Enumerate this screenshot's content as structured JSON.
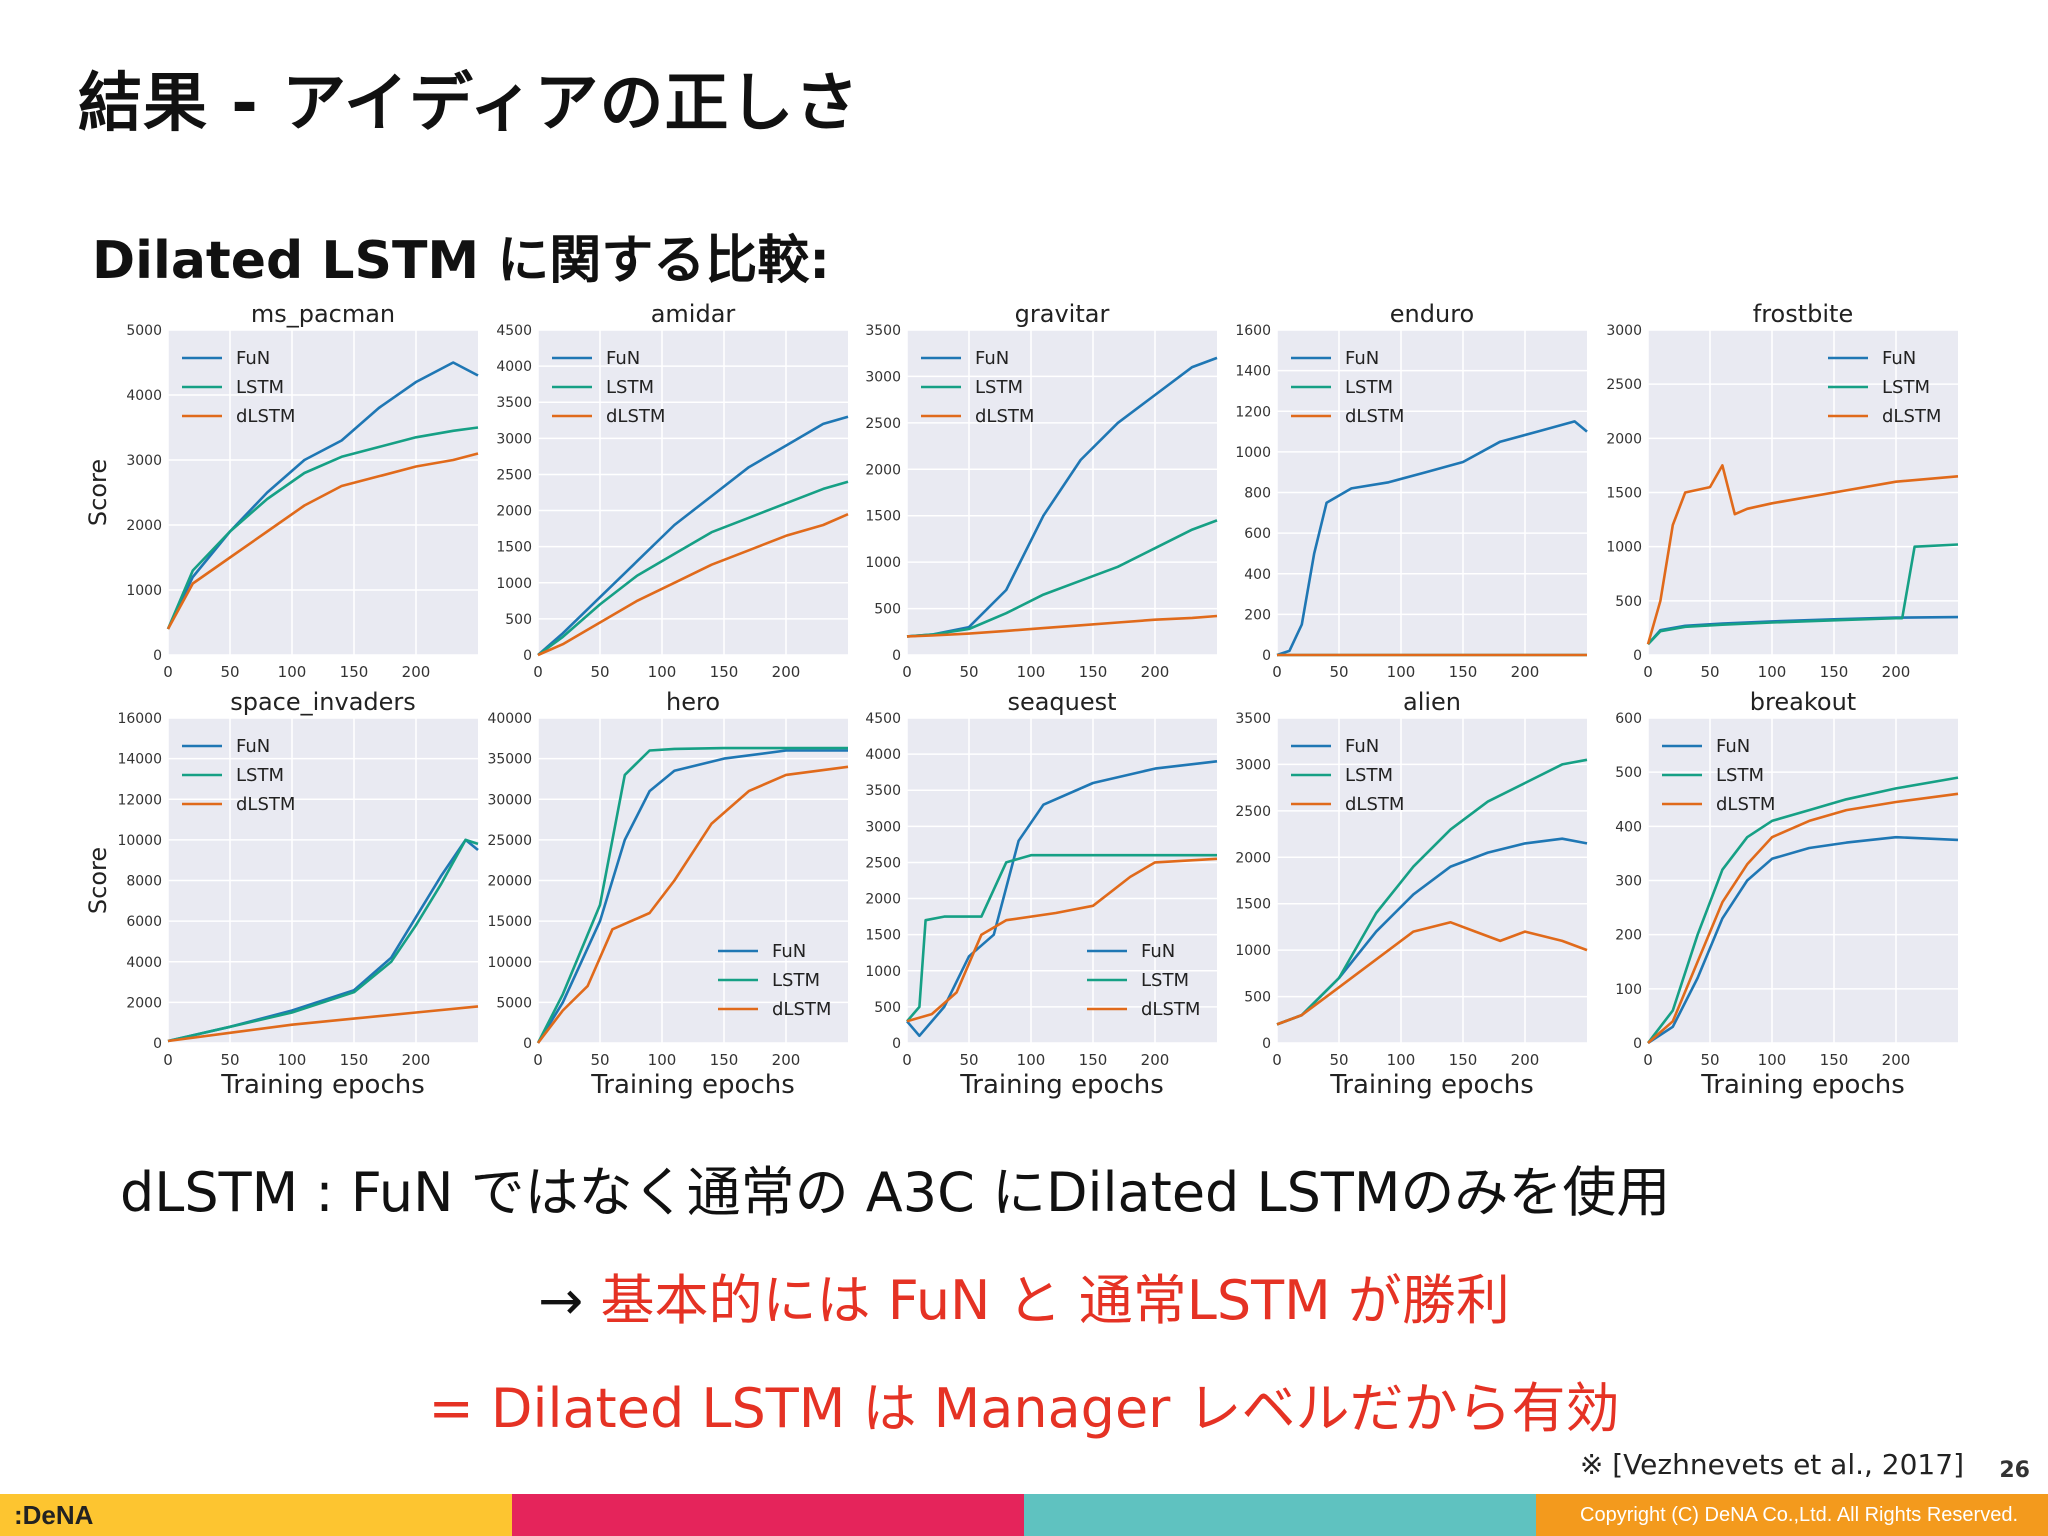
{
  "slide": {
    "title": "結果 - アイディアの正しさ",
    "subtitle": "Dilated LSTM に関する比較:",
    "line1": "dLSTM : FuN ではなく通常の A3C にDilated LSTMのみを使用",
    "line2_arrow": "→ ",
    "line2_red": "基本的には FuN と 通常LSTM が勝利",
    "line3": "= Dilated LSTM は Manager レベルだから有効",
    "citation": "※ [Vezhnevets et al., 2017]",
    "page_number": "26",
    "logo": ":DeNA",
    "copyright": "Copyright (C) DeNA Co.,Ltd. All Rights Reserved."
  },
  "colors": {
    "fun": "#1f77b4",
    "lstm": "#16a085",
    "dlstm": "#e06a1b",
    "panel_bg": "#e9eaf2",
    "grid": "#ffffff",
    "red_text": "#e53224",
    "footer": [
      "#fdc530",
      "#e5245b",
      "#5fc2c0",
      "#f39a1d"
    ]
  },
  "chart_data": [
    {
      "type": "line",
      "title": "ms_pacman",
      "ylabel": "Score",
      "xlabel": "",
      "xlim": [
        0,
        250
      ],
      "ylim": [
        0,
        5000
      ],
      "xticks": [
        0,
        50,
        100,
        150,
        200
      ],
      "yticks": [
        0,
        1000,
        2000,
        3000,
        4000,
        5000
      ],
      "legend": "top-left",
      "series": [
        {
          "name": "FuN",
          "x": [
            0,
            20,
            50,
            80,
            110,
            140,
            170,
            200,
            230,
            250
          ],
          "y": [
            400,
            1200,
            1900,
            2500,
            3000,
            3300,
            3800,
            4200,
            4500,
            4300
          ]
        },
        {
          "name": "LSTM",
          "x": [
            0,
            20,
            50,
            80,
            110,
            140,
            170,
            200,
            230,
            250
          ],
          "y": [
            400,
            1300,
            1900,
            2400,
            2800,
            3050,
            3200,
            3350,
            3450,
            3500
          ]
        },
        {
          "name": "dLSTM",
          "x": [
            0,
            20,
            50,
            80,
            110,
            140,
            170,
            200,
            230,
            250
          ],
          "y": [
            400,
            1100,
            1500,
            1900,
            2300,
            2600,
            2750,
            2900,
            3000,
            3100
          ]
        }
      ]
    },
    {
      "type": "line",
      "title": "amidar",
      "ylabel": "",
      "xlabel": "",
      "xlim": [
        0,
        250
      ],
      "ylim": [
        0,
        4500
      ],
      "xticks": [
        0,
        50,
        100,
        150,
        200
      ],
      "yticks": [
        0,
        500,
        1000,
        1500,
        2000,
        2500,
        3000,
        3500,
        4000,
        4500
      ],
      "legend": "top-left",
      "series": [
        {
          "name": "FuN",
          "x": [
            0,
            20,
            50,
            80,
            110,
            140,
            170,
            200,
            230,
            250
          ],
          "y": [
            0,
            300,
            800,
            1300,
            1800,
            2200,
            2600,
            2900,
            3200,
            3300
          ]
        },
        {
          "name": "LSTM",
          "x": [
            0,
            20,
            50,
            80,
            110,
            140,
            170,
            200,
            230,
            250
          ],
          "y": [
            0,
            250,
            700,
            1100,
            1400,
            1700,
            1900,
            2100,
            2300,
            2400
          ]
        },
        {
          "name": "dLSTM",
          "x": [
            0,
            20,
            50,
            80,
            110,
            140,
            170,
            200,
            230,
            250
          ],
          "y": [
            0,
            150,
            450,
            750,
            1000,
            1250,
            1450,
            1650,
            1800,
            1950
          ]
        }
      ]
    },
    {
      "type": "line",
      "title": "gravitar",
      "ylabel": "",
      "xlabel": "",
      "xlim": [
        0,
        250
      ],
      "ylim": [
        0,
        3500
      ],
      "xticks": [
        0,
        50,
        100,
        150,
        200
      ],
      "yticks": [
        0,
        500,
        1000,
        1500,
        2000,
        2500,
        3000,
        3500
      ],
      "legend": "top-left",
      "series": [
        {
          "name": "FuN",
          "x": [
            0,
            20,
            50,
            80,
            110,
            140,
            170,
            200,
            230,
            250
          ],
          "y": [
            200,
            220,
            300,
            700,
            1500,
            2100,
            2500,
            2800,
            3100,
            3200
          ]
        },
        {
          "name": "LSTM",
          "x": [
            0,
            20,
            50,
            80,
            110,
            140,
            170,
            200,
            230,
            250
          ],
          "y": [
            200,
            220,
            280,
            450,
            650,
            800,
            950,
            1150,
            1350,
            1450
          ]
        },
        {
          "name": "dLSTM",
          "x": [
            0,
            20,
            50,
            80,
            110,
            140,
            170,
            200,
            230,
            250
          ],
          "y": [
            200,
            210,
            230,
            260,
            290,
            320,
            350,
            380,
            400,
            420
          ]
        }
      ]
    },
    {
      "type": "line",
      "title": "enduro",
      "ylabel": "",
      "xlabel": "",
      "xlim": [
        0,
        250
      ],
      "ylim": [
        0,
        1600
      ],
      "xticks": [
        0,
        50,
        100,
        150,
        200
      ],
      "yticks": [
        0,
        200,
        400,
        600,
        800,
        1000,
        1200,
        1400,
        1600
      ],
      "legend": "top-left",
      "series": [
        {
          "name": "FuN",
          "x": [
            0,
            10,
            20,
            30,
            40,
            60,
            90,
            120,
            150,
            180,
            210,
            240,
            250
          ],
          "y": [
            0,
            20,
            150,
            500,
            750,
            820,
            850,
            900,
            950,
            1050,
            1100,
            1150,
            1100
          ]
        },
        {
          "name": "LSTM",
          "x": [
            0,
            250
          ],
          "y": [
            0,
            0
          ]
        },
        {
          "name": "dLSTM",
          "x": [
            0,
            250
          ],
          "y": [
            0,
            0
          ]
        }
      ]
    },
    {
      "type": "line",
      "title": "frostbite",
      "ylabel": "",
      "xlabel": "",
      "xlim": [
        0,
        250
      ],
      "ylim": [
        0,
        3000
      ],
      "xticks": [
        0,
        50,
        100,
        150,
        200
      ],
      "yticks": [
        0,
        500,
        1000,
        1500,
        2000,
        2500,
        3000
      ],
      "legend": "top-right",
      "series": [
        {
          "name": "FuN",
          "x": [
            0,
            10,
            30,
            60,
            100,
            150,
            200,
            250
          ],
          "y": [
            100,
            230,
            270,
            290,
            310,
            330,
            345,
            350
          ]
        },
        {
          "name": "LSTM",
          "x": [
            0,
            10,
            30,
            60,
            100,
            150,
            200,
            205,
            215,
            250
          ],
          "y": [
            100,
            220,
            260,
            280,
            300,
            320,
            340,
            340,
            1000,
            1020
          ]
        },
        {
          "name": "dLSTM",
          "x": [
            0,
            10,
            20,
            30,
            50,
            60,
            70,
            80,
            100,
            150,
            200,
            250
          ],
          "y": [
            100,
            500,
            1200,
            1500,
            1550,
            1750,
            1300,
            1350,
            1400,
            1500,
            1600,
            1650
          ]
        }
      ]
    },
    {
      "type": "line",
      "title": "space_invaders",
      "ylabel": "Score",
      "xlabel": "Training epochs",
      "xlim": [
        0,
        250
      ],
      "ylim": [
        0,
        16000
      ],
      "xticks": [
        0,
        50,
        100,
        150,
        200
      ],
      "yticks": [
        0,
        2000,
        4000,
        6000,
        8000,
        10000,
        12000,
        14000,
        16000
      ],
      "legend": "top-left",
      "series": [
        {
          "name": "FuN",
          "x": [
            0,
            50,
            100,
            150,
            180,
            200,
            220,
            240,
            250
          ],
          "y": [
            100,
            800,
            1600,
            2600,
            4200,
            6200,
            8200,
            10000,
            9500
          ]
        },
        {
          "name": "LSTM",
          "x": [
            0,
            50,
            100,
            150,
            180,
            200,
            220,
            240,
            250
          ],
          "y": [
            100,
            800,
            1500,
            2500,
            4000,
            5800,
            7800,
            10000,
            9800
          ]
        },
        {
          "name": "dLSTM",
          "x": [
            0,
            50,
            100,
            150,
            200,
            250
          ],
          "y": [
            100,
            500,
            900,
            1200,
            1500,
            1800
          ]
        }
      ]
    },
    {
      "type": "line",
      "title": "hero",
      "ylabel": "",
      "xlabel": "Training epochs",
      "xlim": [
        0,
        250
      ],
      "ylim": [
        0,
        40000
      ],
      "xticks": [
        0,
        50,
        100,
        150,
        200
      ],
      "yticks": [
        0,
        5000,
        10000,
        15000,
        20000,
        25000,
        30000,
        35000,
        40000
      ],
      "legend": "bottom-right",
      "series": [
        {
          "name": "FuN",
          "x": [
            0,
            20,
            50,
            70,
            90,
            110,
            150,
            200,
            250
          ],
          "y": [
            0,
            5000,
            15000,
            25000,
            31000,
            33500,
            35000,
            36000,
            36000
          ]
        },
        {
          "name": "LSTM",
          "x": [
            0,
            20,
            50,
            70,
            90,
            110,
            150,
            200,
            250
          ],
          "y": [
            0,
            6000,
            17000,
            33000,
            36000,
            36200,
            36300,
            36300,
            36300
          ]
        },
        {
          "name": "dLSTM",
          "x": [
            0,
            20,
            40,
            60,
            90,
            110,
            140,
            170,
            200,
            250
          ],
          "y": [
            0,
            4000,
            7000,
            14000,
            16000,
            20000,
            27000,
            31000,
            33000,
            34000
          ]
        }
      ]
    },
    {
      "type": "line",
      "title": "seaquest",
      "ylabel": "",
      "xlabel": "Training epochs",
      "xlim": [
        0,
        250
      ],
      "ylim": [
        0,
        4500
      ],
      "xticks": [
        0,
        50,
        100,
        150,
        200
      ],
      "yticks": [
        0,
        500,
        1000,
        1500,
        2000,
        2500,
        3000,
        3500,
        4000,
        4500
      ],
      "legend": "bottom-right",
      "series": [
        {
          "name": "FuN",
          "x": [
            0,
            10,
            30,
            50,
            70,
            90,
            110,
            150,
            200,
            250
          ],
          "y": [
            300,
            100,
            500,
            1200,
            1500,
            2800,
            3300,
            3600,
            3800,
            3900
          ]
        },
        {
          "name": "LSTM",
          "x": [
            0,
            10,
            15,
            30,
            60,
            80,
            100,
            150,
            250
          ],
          "y": [
            300,
            500,
            1700,
            1750,
            1750,
            2500,
            2600,
            2600,
            2600
          ]
        },
        {
          "name": "dLSTM",
          "x": [
            0,
            20,
            40,
            60,
            80,
            120,
            150,
            180,
            200,
            250
          ],
          "y": [
            300,
            400,
            700,
            1500,
            1700,
            1800,
            1900,
            2300,
            2500,
            2550
          ]
        }
      ]
    },
    {
      "type": "line",
      "title": "alien",
      "ylabel": "",
      "xlabel": "Training epochs",
      "xlim": [
        0,
        250
      ],
      "ylim": [
        0,
        3500
      ],
      "xticks": [
        0,
        50,
        100,
        150,
        200
      ],
      "yticks": [
        0,
        500,
        1000,
        1500,
        2000,
        2500,
        3000,
        3500
      ],
      "legend": "top-left",
      "series": [
        {
          "name": "FuN",
          "x": [
            0,
            20,
            50,
            80,
            110,
            140,
            170,
            200,
            230,
            250
          ],
          "y": [
            200,
            300,
            700,
            1200,
            1600,
            1900,
            2050,
            2150,
            2200,
            2150
          ]
        },
        {
          "name": "LSTM",
          "x": [
            0,
            20,
            50,
            80,
            110,
            140,
            170,
            200,
            230,
            250
          ],
          "y": [
            200,
            300,
            700,
            1400,
            1900,
            2300,
            2600,
            2800,
            3000,
            3050
          ]
        },
        {
          "name": "dLSTM",
          "x": [
            0,
            20,
            50,
            80,
            110,
            140,
            160,
            180,
            200,
            230,
            250
          ],
          "y": [
            200,
            300,
            600,
            900,
            1200,
            1300,
            1200,
            1100,
            1200,
            1100,
            1000
          ]
        }
      ]
    },
    {
      "type": "line",
      "title": "breakout",
      "ylabel": "",
      "xlabel": "Training epochs",
      "xlim": [
        0,
        250
      ],
      "ylim": [
        0,
        600
      ],
      "xticks": [
        0,
        50,
        100,
        150,
        200
      ],
      "yticks": [
        0,
        100,
        200,
        300,
        400,
        500,
        600
      ],
      "legend": "top-left",
      "series": [
        {
          "name": "FuN",
          "x": [
            0,
            20,
            40,
            60,
            80,
            100,
            130,
            160,
            200,
            250
          ],
          "y": [
            0,
            30,
            120,
            230,
            300,
            340,
            360,
            370,
            380,
            375
          ]
        },
        {
          "name": "LSTM",
          "x": [
            0,
            20,
            40,
            60,
            80,
            100,
            130,
            160,
            200,
            250
          ],
          "y": [
            0,
            60,
            200,
            320,
            380,
            410,
            430,
            450,
            470,
            490
          ]
        },
        {
          "name": "dLSTM",
          "x": [
            0,
            20,
            40,
            60,
            80,
            100,
            130,
            160,
            200,
            250
          ],
          "y": [
            0,
            40,
            150,
            260,
            330,
            380,
            410,
            430,
            445,
            460
          ]
        }
      ]
    }
  ]
}
